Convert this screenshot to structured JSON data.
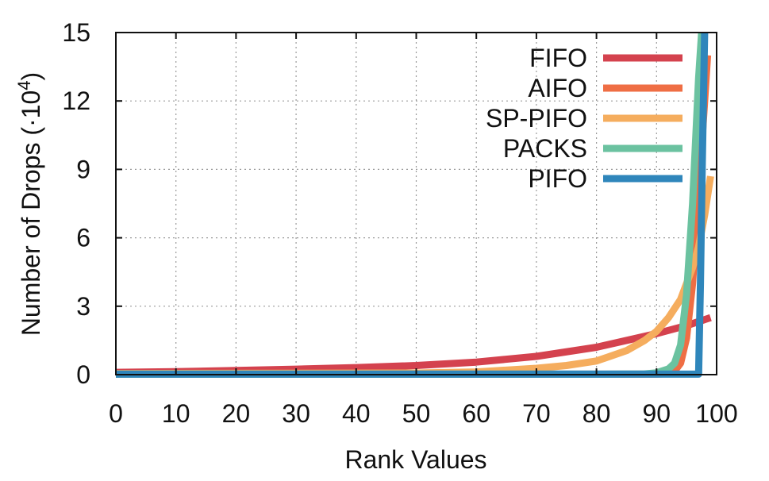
{
  "chart_data": {
    "type": "line",
    "xlabel": "Rank Values",
    "ylabel": "Number of Drops (·10",
    "ylabel_sup": "4",
    "ylabel_close": ")",
    "xlim": [
      0,
      100
    ],
    "ylim": [
      0,
      15
    ],
    "xticks": [
      0,
      10,
      20,
      30,
      40,
      50,
      60,
      70,
      80,
      90,
      100
    ],
    "yticks": [
      0,
      3,
      6,
      9,
      12,
      15
    ],
    "grid": true,
    "legend_position": "top-right",
    "series": [
      {
        "name": "FIFO",
        "color": "#d4424e",
        "points": [
          [
            0,
            0.1
          ],
          [
            10,
            0.13
          ],
          [
            20,
            0.18
          ],
          [
            30,
            0.24
          ],
          [
            40,
            0.31
          ],
          [
            50,
            0.4
          ],
          [
            60,
            0.55
          ],
          [
            70,
            0.8
          ],
          [
            80,
            1.2
          ],
          [
            90,
            1.8
          ],
          [
            95,
            2.15
          ],
          [
            99,
            2.5
          ]
        ]
      },
      {
        "name": "AIFO",
        "color": "#ef6e44",
        "points": [
          [
            0,
            0.02
          ],
          [
            50,
            0.02
          ],
          [
            90,
            0.02
          ],
          [
            92,
            0.05
          ],
          [
            93,
            0.15
          ],
          [
            94,
            0.5
          ],
          [
            95,
            1.6
          ],
          [
            96,
            4.0
          ],
          [
            97,
            8.0
          ],
          [
            98,
            12.0
          ],
          [
            98.5,
            14.0
          ]
        ]
      },
      {
        "name": "SP-PIFO",
        "color": "#f5ad5e",
        "points": [
          [
            0,
            0.05
          ],
          [
            50,
            0.07
          ],
          [
            60,
            0.12
          ],
          [
            70,
            0.28
          ],
          [
            75,
            0.4
          ],
          [
            80,
            0.6
          ],
          [
            85,
            1.05
          ],
          [
            88,
            1.5
          ],
          [
            90,
            1.9
          ],
          [
            92,
            2.5
          ],
          [
            94,
            3.3
          ],
          [
            96,
            4.7
          ],
          [
            97,
            5.6
          ],
          [
            98,
            7.0
          ],
          [
            99,
            8.7
          ]
        ]
      },
      {
        "name": "PACKS",
        "color": "#6bc2a0",
        "points": [
          [
            0,
            0.02
          ],
          [
            80,
            0.02
          ],
          [
            88,
            0.03
          ],
          [
            90,
            0.08
          ],
          [
            92,
            0.25
          ],
          [
            93,
            0.5
          ],
          [
            94,
            1.3
          ],
          [
            95,
            3.5
          ],
          [
            96,
            7.5
          ],
          [
            97,
            13.0
          ],
          [
            97.5,
            15.0
          ]
        ]
      },
      {
        "name": "PIFO",
        "color": "#2f86bb",
        "points": [
          [
            0,
            0.02
          ],
          [
            97,
            0.02
          ],
          [
            97.3,
            4.0
          ],
          [
            97.6,
            9.0
          ],
          [
            98,
            15.0
          ]
        ]
      }
    ]
  }
}
